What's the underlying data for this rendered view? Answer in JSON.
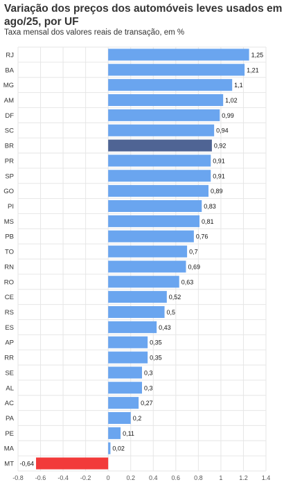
{
  "chart_data": {
    "type": "bar",
    "orientation": "horizontal",
    "title": "Variação dos preços dos automóveis leves usados em ago/25, por UF",
    "subtitle": "Taxa mensal dos valores reais de transação, em %",
    "categories": [
      "RJ",
      "BA",
      "MG",
      "AM",
      "DF",
      "SC",
      "BR",
      "PR",
      "SP",
      "GO",
      "PI",
      "MS",
      "PB",
      "TO",
      "RN",
      "RO",
      "CE",
      "RS",
      "ES",
      "AP",
      "RR",
      "SE",
      "AL",
      "AC",
      "PA",
      "PE",
      "MA",
      "MT"
    ],
    "values": [
      1.25,
      1.21,
      1.1,
      1.02,
      0.99,
      0.94,
      0.92,
      0.91,
      0.91,
      0.89,
      0.83,
      0.81,
      0.76,
      0.7,
      0.69,
      0.63,
      0.52,
      0.5,
      0.43,
      0.35,
      0.35,
      0.3,
      0.3,
      0.27,
      0.2,
      0.11,
      0.02,
      -0.64
    ],
    "value_labels": [
      "1,25",
      "1,21",
      "1,1",
      "1,02",
      "0,99",
      "0,94",
      "0,92",
      "0,91",
      "0,91",
      "0,89",
      "0,83",
      "0,81",
      "0,76",
      "0,7",
      "0,69",
      "0,63",
      "0,52",
      "0,5",
      "0,43",
      "0,35",
      "0,35",
      "0,3",
      "0,3",
      "0,27",
      "0,2",
      "0,11",
      "0,02",
      "-0,64"
    ],
    "xlim": [
      -0.8,
      1.4
    ],
    "xticks": [
      -0.8,
      -0.6,
      -0.4,
      -0.2,
      0,
      0.2,
      0.4,
      0.6,
      0.8,
      1,
      1.2,
      1.4
    ],
    "xtick_labels": [
      "-0.8",
      "-0.6",
      "-0.4",
      "-0.2",
      "0",
      "0.2",
      "0.4",
      "0.6",
      "0.8",
      "1",
      "1.2",
      "1.4"
    ],
    "grid": true,
    "colors": {
      "positive": "#6aa5ef",
      "highlight": "#4f6494",
      "negative": "#f23a3a",
      "grid": "#e6e6e6"
    },
    "highlight_category": "BR"
  }
}
